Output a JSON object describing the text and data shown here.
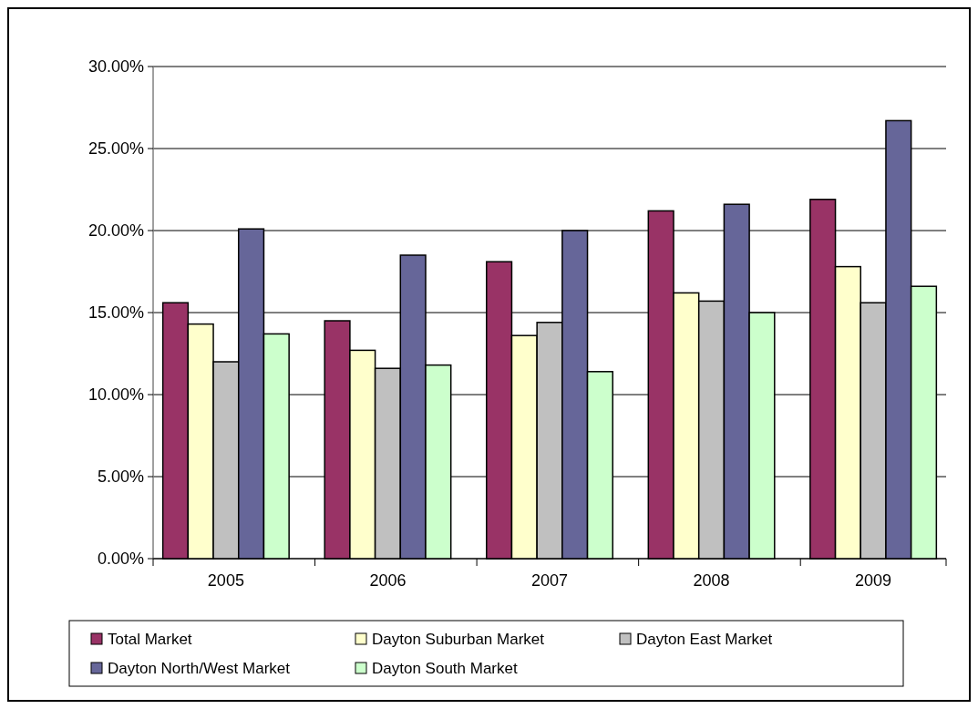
{
  "chart_data": {
    "type": "bar",
    "categories": [
      "2005",
      "2006",
      "2007",
      "2008",
      "2009"
    ],
    "series": [
      {
        "name": "Total Market",
        "color": "#993366",
        "values": [
          15.6,
          14.5,
          18.1,
          21.2,
          21.9
        ]
      },
      {
        "name": "Dayton Suburban Market",
        "color": "#ffffcc",
        "values": [
          14.3,
          12.7,
          13.6,
          16.2,
          17.8
        ]
      },
      {
        "name": "Dayton East Market",
        "color": "#c0c0c0",
        "values": [
          12.0,
          11.6,
          14.4,
          15.7,
          15.6
        ]
      },
      {
        "name": "Dayton North/West Market",
        "color": "#666699",
        "values": [
          20.1,
          18.5,
          20.0,
          21.6,
          26.7
        ]
      },
      {
        "name": "Dayton South Market",
        "color": "#ccffcc",
        "values": [
          13.7,
          11.8,
          11.4,
          15.0,
          16.6
        ]
      }
    ],
    "ylim": [
      0,
      30
    ],
    "yticks": [
      {
        "value": 0,
        "label": "0.00%"
      },
      {
        "value": 5,
        "label": "5.00%"
      },
      {
        "value": 10,
        "label": "10.00%"
      },
      {
        "value": 15,
        "label": "15.00%"
      },
      {
        "value": 20,
        "label": "20.00%"
      },
      {
        "value": 25,
        "label": "25.00%"
      },
      {
        "value": 30,
        "label": "30.00%"
      }
    ],
    "grid": "y",
    "legend": "bottom"
  }
}
